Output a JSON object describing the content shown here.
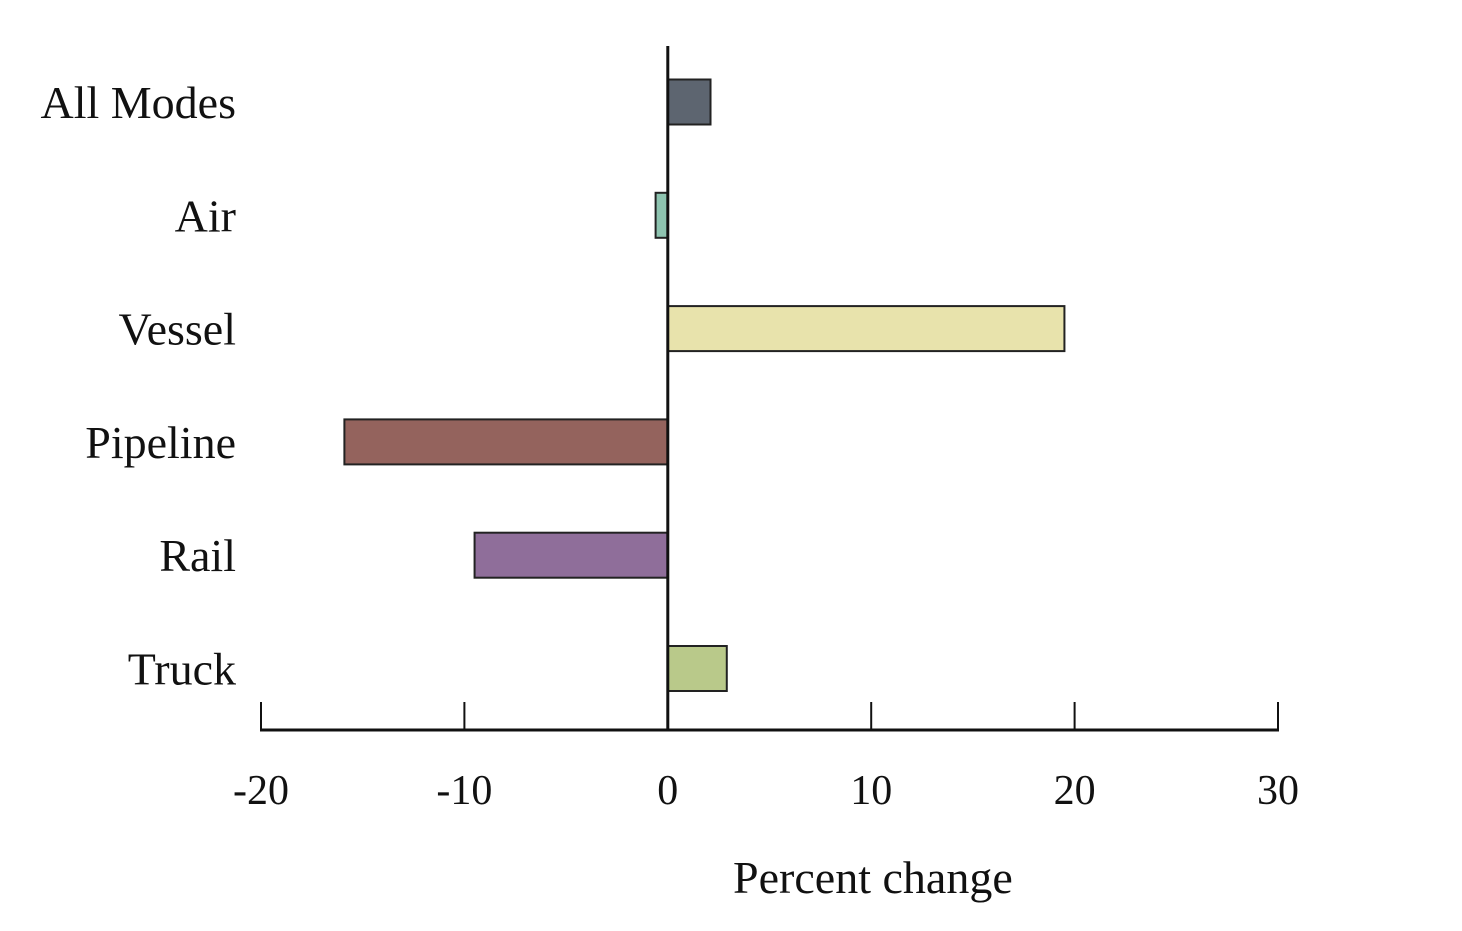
{
  "chart_data": {
    "type": "bar",
    "orientation": "horizontal",
    "categories": [
      "All Modes",
      "Air",
      "Vessel",
      "Pipeline",
      "Rail",
      "Truck"
    ],
    "values": [
      2.1,
      -0.6,
      19.5,
      -15.9,
      -9.5,
      2.9
    ],
    "colors": [
      "#5d6570",
      "#8ec4b0",
      "#e8e3ac",
      "#94635d",
      "#8f6e9a",
      "#b9c98a"
    ],
    "title": "",
    "xlabel": "Percent change",
    "ylabel": "",
    "xlim": [
      -20,
      30
    ],
    "xticks": [
      -20,
      -10,
      0,
      10,
      20,
      30
    ],
    "xtick_labels": [
      "-20",
      "-10",
      "0",
      "10",
      "20",
      "30"
    ],
    "grid": false,
    "legend": "none"
  }
}
